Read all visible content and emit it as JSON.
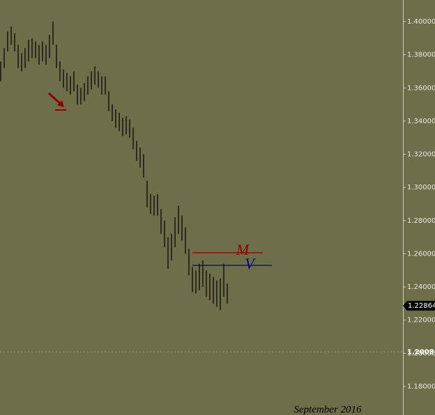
{
  "chart_data": {
    "type": "range-bar",
    "color": "#000000",
    "background": "#6e6e4a",
    "ylim": [
      1.1628,
      1.413
    ],
    "yticks": [
      {
        "value": 1.18,
        "label": "1.18000"
      },
      {
        "value": 1.2,
        "label": "1.20000"
      },
      {
        "value": 1.22,
        "label": "1.22000"
      },
      {
        "value": 1.24,
        "label": "1.24000"
      },
      {
        "value": 1.26,
        "label": "1.26000"
      },
      {
        "value": 1.28,
        "label": "1.28000"
      },
      {
        "value": 1.3,
        "label": "1.30000"
      },
      {
        "value": 1.32,
        "label": "1.32000"
      },
      {
        "value": 1.34,
        "label": "1.34000"
      },
      {
        "value": 1.36,
        "label": "1.36000"
      },
      {
        "value": 1.38,
        "label": "1.38000"
      },
      {
        "value": 1.4,
        "label": "1.40000"
      }
    ],
    "high": [
      1.376,
      1.384,
      1.394,
      1.397,
      1.393,
      1.386,
      1.381,
      1.384,
      1.389,
      1.39,
      1.388,
      1.386,
      1.388,
      1.386,
      1.392,
      1.4,
      1.386,
      1.376,
      1.371,
      1.369,
      1.367,
      1.37,
      1.362,
      1.36,
      1.363,
      1.367,
      1.37,
      1.373,
      1.37,
      1.367,
      1.367,
      1.358,
      1.35,
      1.347,
      1.345,
      1.342,
      1.343,
      1.341,
      1.336,
      1.328,
      1.324,
      1.32,
      1.304,
      1.296,
      1.295,
      1.296,
      1.287,
      1.28,
      1.27,
      1.272,
      1.282,
      1.289,
      1.283,
      1.276,
      1.263,
      1.252,
      1.25,
      1.254,
      1.256,
      1.25,
      1.248,
      1.246,
      1.244,
      1.245,
      1.254,
      1.242
    ],
    "low": [
      1.364,
      1.372,
      1.382,
      1.386,
      1.382,
      1.372,
      1.37,
      1.372,
      1.376,
      1.378,
      1.378,
      1.374,
      1.376,
      1.374,
      1.378,
      1.386,
      1.372,
      1.364,
      1.36,
      1.358,
      1.356,
      1.358,
      1.35,
      1.35,
      1.352,
      1.356,
      1.359,
      1.362,
      1.36,
      1.356,
      1.356,
      1.346,
      1.34,
      1.336,
      1.334,
      1.331,
      1.332,
      1.33,
      1.323,
      1.316,
      1.312,
      1.306,
      1.288,
      1.284,
      1.283,
      1.283,
      1.272,
      1.264,
      1.251,
      1.256,
      1.264,
      1.272,
      1.268,
      1.26,
      1.247,
      1.237,
      1.236,
      1.238,
      1.24,
      1.234,
      1.232,
      1.23,
      1.228,
      1.226,
      1.234,
      1.23
    ],
    "levels": [
      {
        "name": "M",
        "value": 1.2606,
        "color": "#8b0000"
      },
      {
        "name": "V",
        "value": 1.253,
        "color": "#00008b"
      }
    ],
    "price_line": {
      "value": 1.20084,
      "label": "1.20084"
    },
    "current_price": {
      "value": 1.22864,
      "label": "1.22864"
    },
    "period_label": "September   2016"
  }
}
